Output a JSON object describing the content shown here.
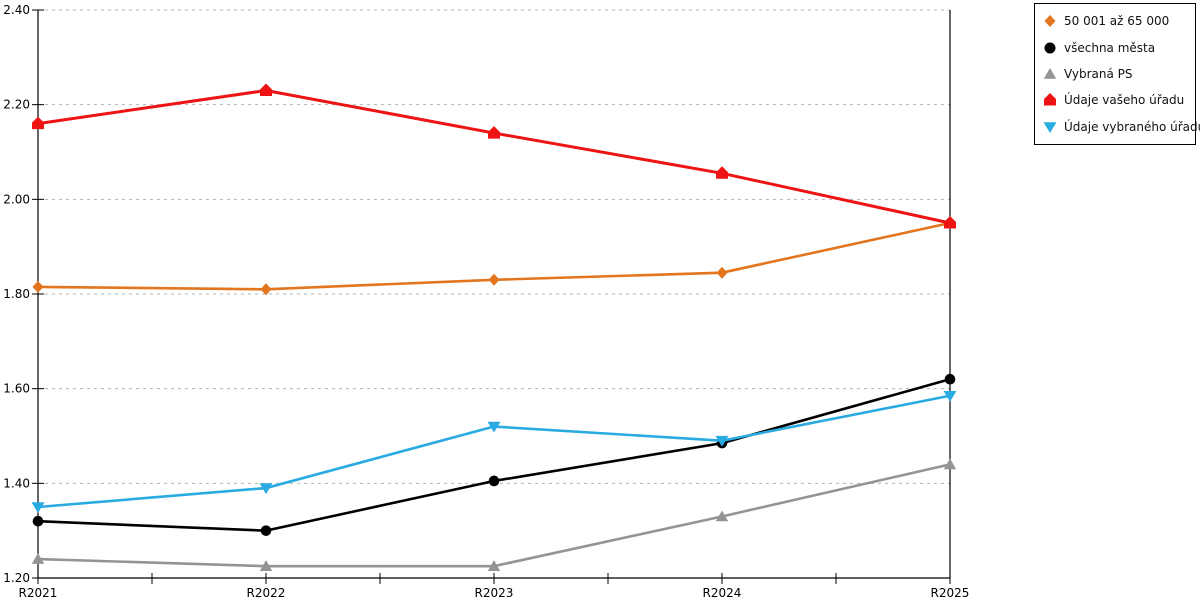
{
  "chart_data": {
    "type": "line",
    "title": "",
    "xlabel": "",
    "ylabel": "",
    "x_tick_labels": [
      "R2021",
      "R2022",
      "R2023",
      "R2024",
      "R2025"
    ],
    "y_tick_labels": [
      "1.20",
      "1.40",
      "1.60",
      "1.80",
      "2.00",
      "2.20",
      "2.40"
    ],
    "ylim": [
      1.2,
      2.4
    ],
    "y_step": 0.2,
    "grid": "horizontal dashed",
    "legend_position": "outside top-right",
    "axis_color": "#000000",
    "grid_color": "#b3b3b3",
    "series": [
      {
        "name": "50 001 až 65 000",
        "color": "#e2751d",
        "marker": "diamond",
        "values": [
          1.815,
          1.81,
          1.83,
          1.845,
          1.95
        ]
      },
      {
        "name": "všechna města",
        "color": "#000000",
        "marker": "circle",
        "values": [
          1.32,
          1.3,
          1.405,
          1.485,
          1.62
        ]
      },
      {
        "name": "Vybraná PS",
        "color": "#949494",
        "marker": "triangle-up",
        "values": [
          1.24,
          1.225,
          1.225,
          1.33,
          1.44
        ]
      },
      {
        "name": "Údaje vašeho úřadu",
        "color": "#ee1414",
        "marker": "pentagon",
        "values": [
          2.16,
          2.23,
          2.14,
          2.055,
          1.95
        ]
      },
      {
        "name": "Údaje vybraného úřadu",
        "color": "#29abe2",
        "marker": "triangle-down",
        "values": [
          1.35,
          1.39,
          1.52,
          1.49,
          1.585
        ]
      }
    ]
  }
}
